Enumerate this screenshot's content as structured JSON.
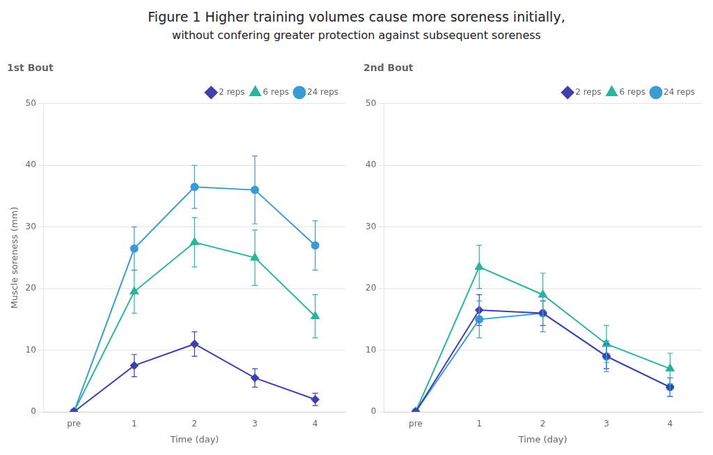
{
  "title": "Figure 1 Higher training volumes cause more soreness initially,",
  "subtitle": "without confering greater protection against subsequent soreness",
  "chart_data": [
    {
      "type": "line",
      "title": "1st Bout",
      "xlabel": "Time (day)",
      "ylabel": "Muscle soreness (mm)",
      "categories": [
        "pre",
        "1",
        "2",
        "3",
        "4"
      ],
      "series": [
        {
          "name": "2 reps",
          "color": "#4040aa",
          "marker": "diamond",
          "values": [
            0,
            7.5,
            11.0,
            5.5,
            2.0
          ],
          "errors": [
            0,
            1.8,
            2.0,
            1.5,
            1.0
          ]
        },
        {
          "name": "6 reps",
          "color": "#2ab59a",
          "marker": "triangle",
          "values": [
            0,
            19.5,
            27.5,
            25.0,
            15.5
          ],
          "errors": [
            0,
            3.5,
            4.0,
            4.5,
            3.5
          ]
        },
        {
          "name": "24 reps",
          "color": "#3a9bd5",
          "marker": "circle",
          "values": [
            0,
            26.5,
            36.5,
            36.0,
            27.0
          ],
          "errors": [
            0,
            3.5,
            3.5,
            5.5,
            4.0
          ]
        }
      ],
      "ylim": [
        0,
        50
      ],
      "yticks": [
        0,
        10,
        20,
        30,
        40,
        50
      ],
      "grid": "y",
      "legend": "upper right"
    },
    {
      "type": "line",
      "title": "2nd Bout",
      "xlabel": "Time (day)",
      "categories": [
        "pre",
        "1",
        "2",
        "3",
        "4"
      ],
      "series": [
        {
          "name": "2 reps",
          "color": "#4040aa",
          "marker": "diamond",
          "values": [
            0,
            16.5,
            16.0,
            9.0,
            4.0
          ],
          "errors": [
            0,
            2.5,
            2.0,
            2.0,
            1.5
          ]
        },
        {
          "name": "6 reps",
          "color": "#2ab59a",
          "marker": "triangle",
          "values": [
            0,
            23.5,
            19.0,
            11.0,
            7.0
          ],
          "errors": [
            0,
            3.5,
            3.5,
            3.0,
            2.5
          ]
        },
        {
          "name": "24 reps",
          "color": "#3a9bd5",
          "marker": "circle",
          "values": [
            0,
            15.0,
            16.0,
            9.0,
            4.0
          ],
          "errors": [
            0,
            3.0,
            3.0,
            2.5,
            1.5
          ]
        }
      ],
      "ylim": [
        0,
        50
      ],
      "yticks": [
        0,
        10,
        20,
        30,
        40,
        50
      ],
      "grid": "y",
      "legend": "upper right"
    }
  ]
}
